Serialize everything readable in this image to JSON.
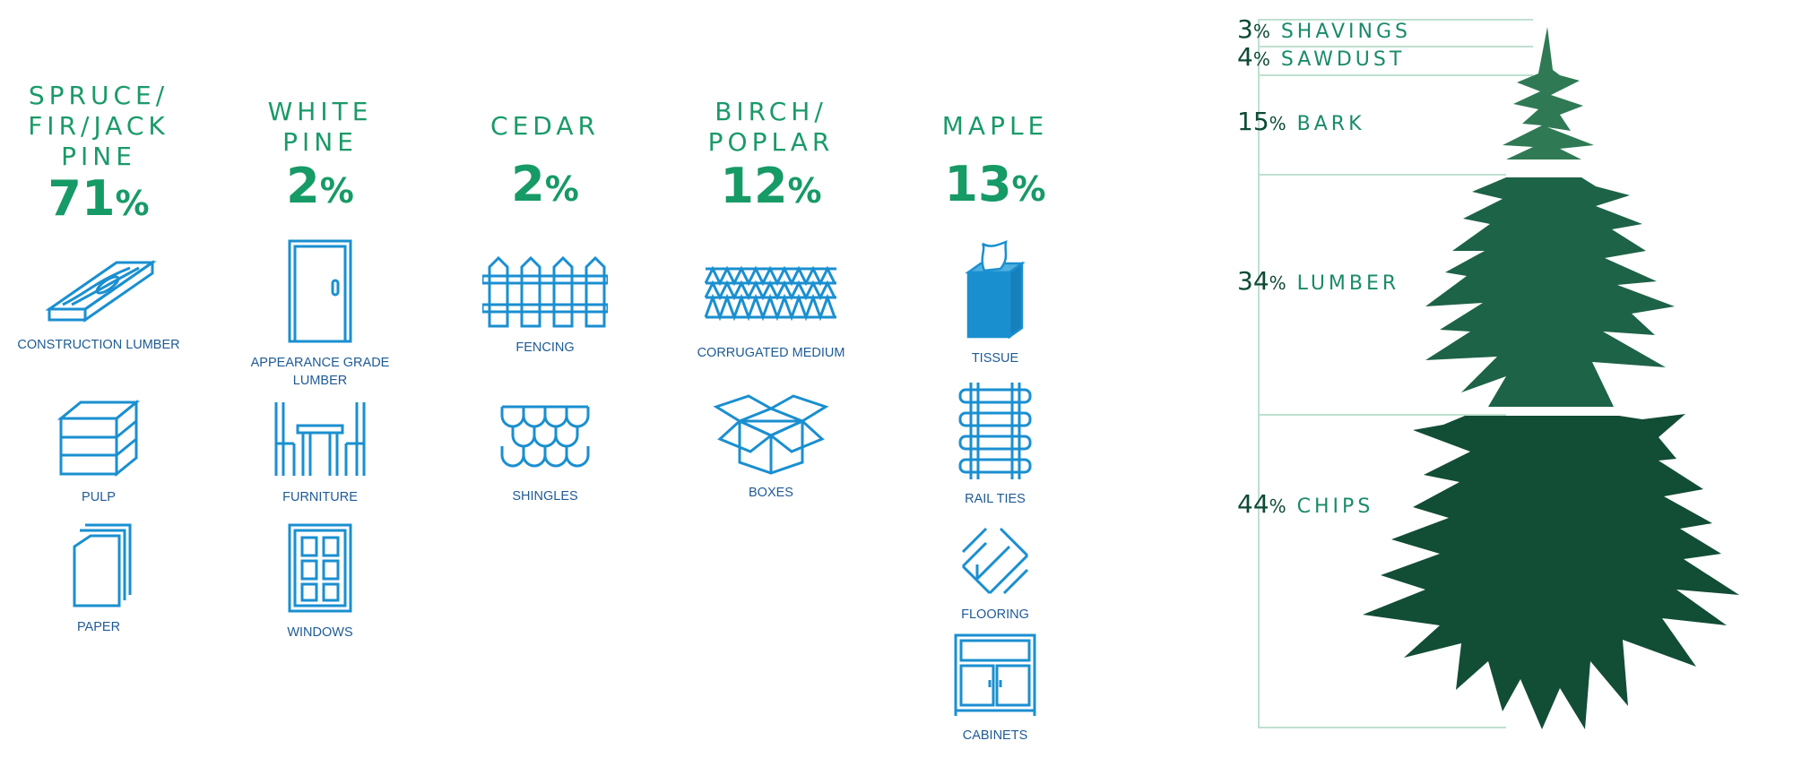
{
  "species": [
    {
      "name": "SPRUCE/\nFIR/JACK\nPINE",
      "pct": "71",
      "unit": "%",
      "products": [
        "CONSTRUCTION LUMBER",
        "PULP",
        "PAPER"
      ]
    },
    {
      "name": "WHITE\nPINE",
      "pct": "2",
      "unit": "%",
      "products": [
        "APPEARANCE GRADE LUMBER",
        "FURNITURE",
        "WINDOWS"
      ]
    },
    {
      "name": "CEDAR",
      "pct": "2",
      "unit": "%",
      "products": [
        "FENCING",
        "SHINGLES"
      ]
    },
    {
      "name": "BIRCH/\nPOPLAR",
      "pct": "12",
      "unit": "%",
      "products": [
        "CORRUGATED MEDIUM",
        "BOXES"
      ]
    },
    {
      "name": "MAPLE",
      "pct": "13",
      "unit": "%",
      "products": [
        "TISSUE",
        "RAIL TIES",
        "FLOORING",
        "CABINETS"
      ]
    }
  ],
  "tree": {
    "segments": [
      {
        "pct": "3",
        "unit": "%",
        "name": "SHAVINGS"
      },
      {
        "pct": "4",
        "unit": "%",
        "name": "SAWDUST"
      },
      {
        "pct": "15",
        "unit": "%",
        "name": "BARK"
      },
      {
        "pct": "34",
        "unit": "%",
        "name": "LUMBER"
      },
      {
        "pct": "44",
        "unit": "%",
        "name": "CHIPS"
      }
    ]
  },
  "colors": {
    "species_text": "#1a9a68",
    "icon_blue": "#1a8fd0",
    "label_blue": "#1e5b95",
    "tree_light": "#2f7a55",
    "tree_mid": "#1d6347",
    "tree_dark": "#124d36"
  }
}
